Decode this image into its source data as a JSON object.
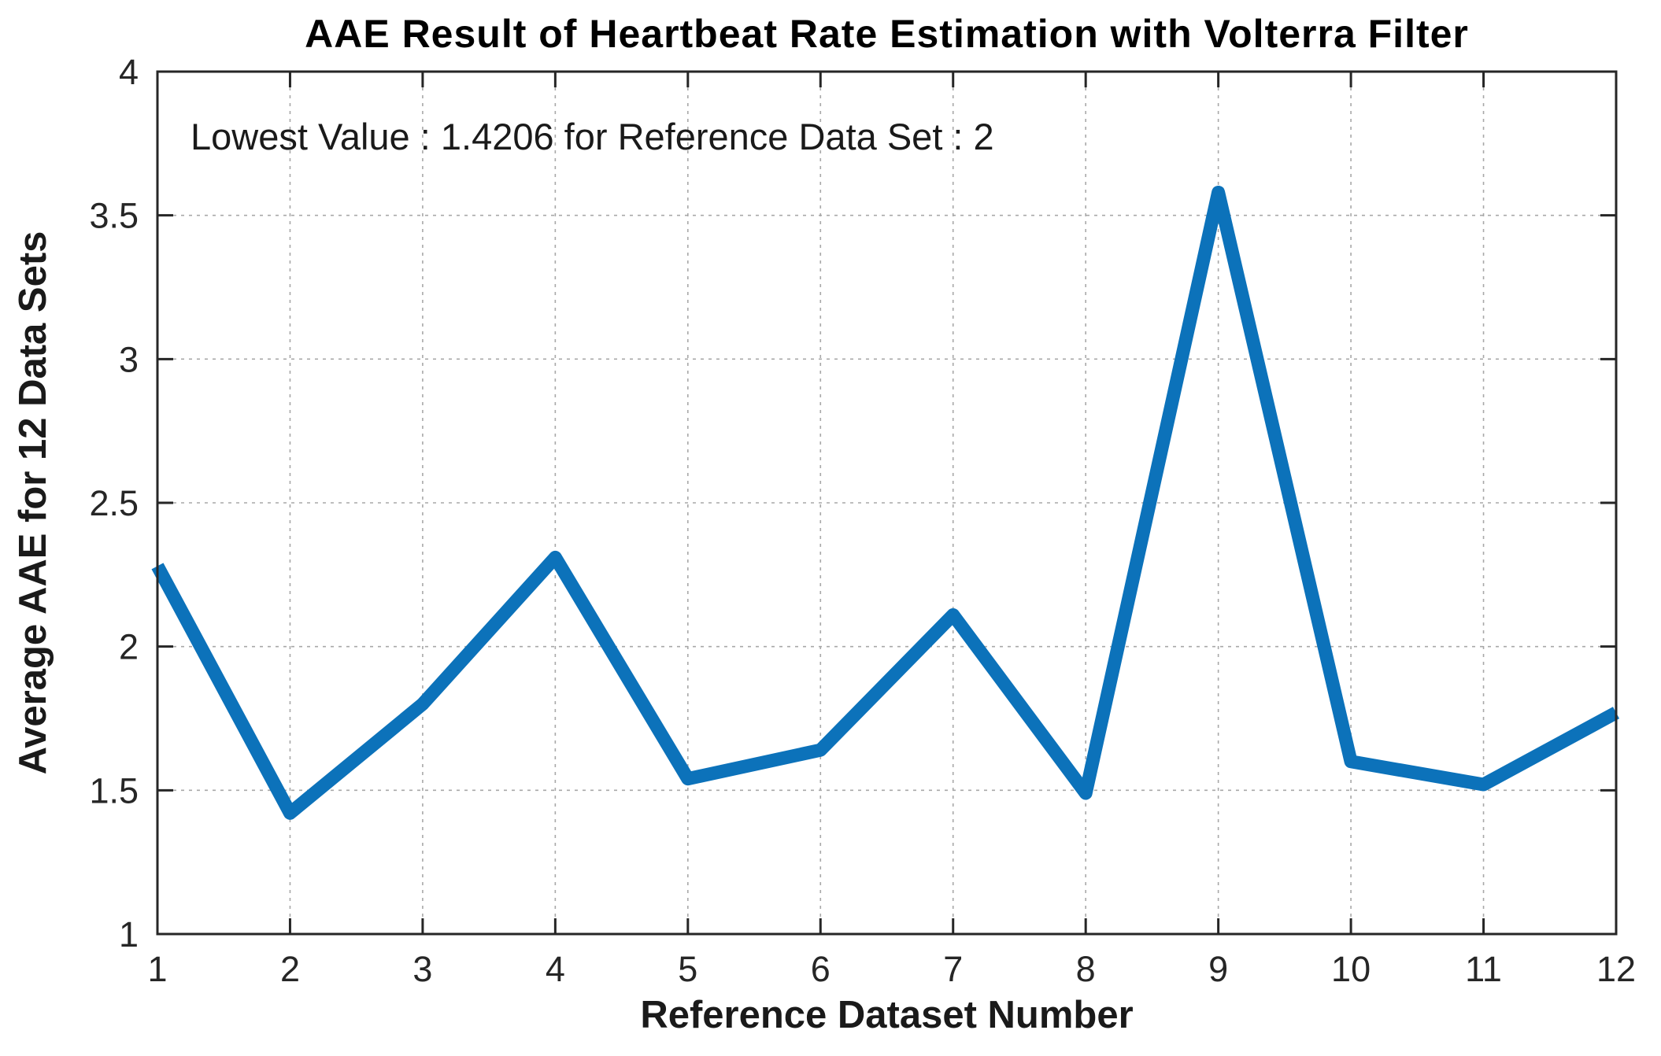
{
  "chart_data": {
    "type": "line",
    "title": "AAE Result of Heartbeat Rate Estimation with Volterra Filter",
    "xlabel": "Reference Dataset Number",
    "ylabel": "Average AAE for 12 Data Sets",
    "x": [
      1,
      2,
      3,
      4,
      5,
      6,
      7,
      8,
      9,
      10,
      11,
      12
    ],
    "values": [
      2.28,
      1.4206,
      1.8,
      2.31,
      1.54,
      1.64,
      2.11,
      1.49,
      3.58,
      1.6,
      1.52,
      1.77
    ],
    "xlim": [
      1,
      12
    ],
    "ylim": [
      1,
      4
    ],
    "xticks": [
      1,
      2,
      3,
      4,
      5,
      6,
      7,
      8,
      9,
      10,
      11,
      12
    ],
    "yticks": [
      1,
      1.5,
      2,
      2.5,
      3,
      3.5,
      4
    ],
    "grid": true,
    "grid_style": "dashed",
    "legend": "none",
    "annotation": {
      "text": "Lowest Value : 1.4206 for Reference Data Set : 2",
      "lowest_value": 1.4206,
      "lowest_reference_data_set": 2
    },
    "colors": {
      "line": "#0c72ba",
      "grid": "#a8a8a8",
      "axis": "#262626",
      "title_text": "#000000",
      "background": "#ffffff"
    }
  }
}
